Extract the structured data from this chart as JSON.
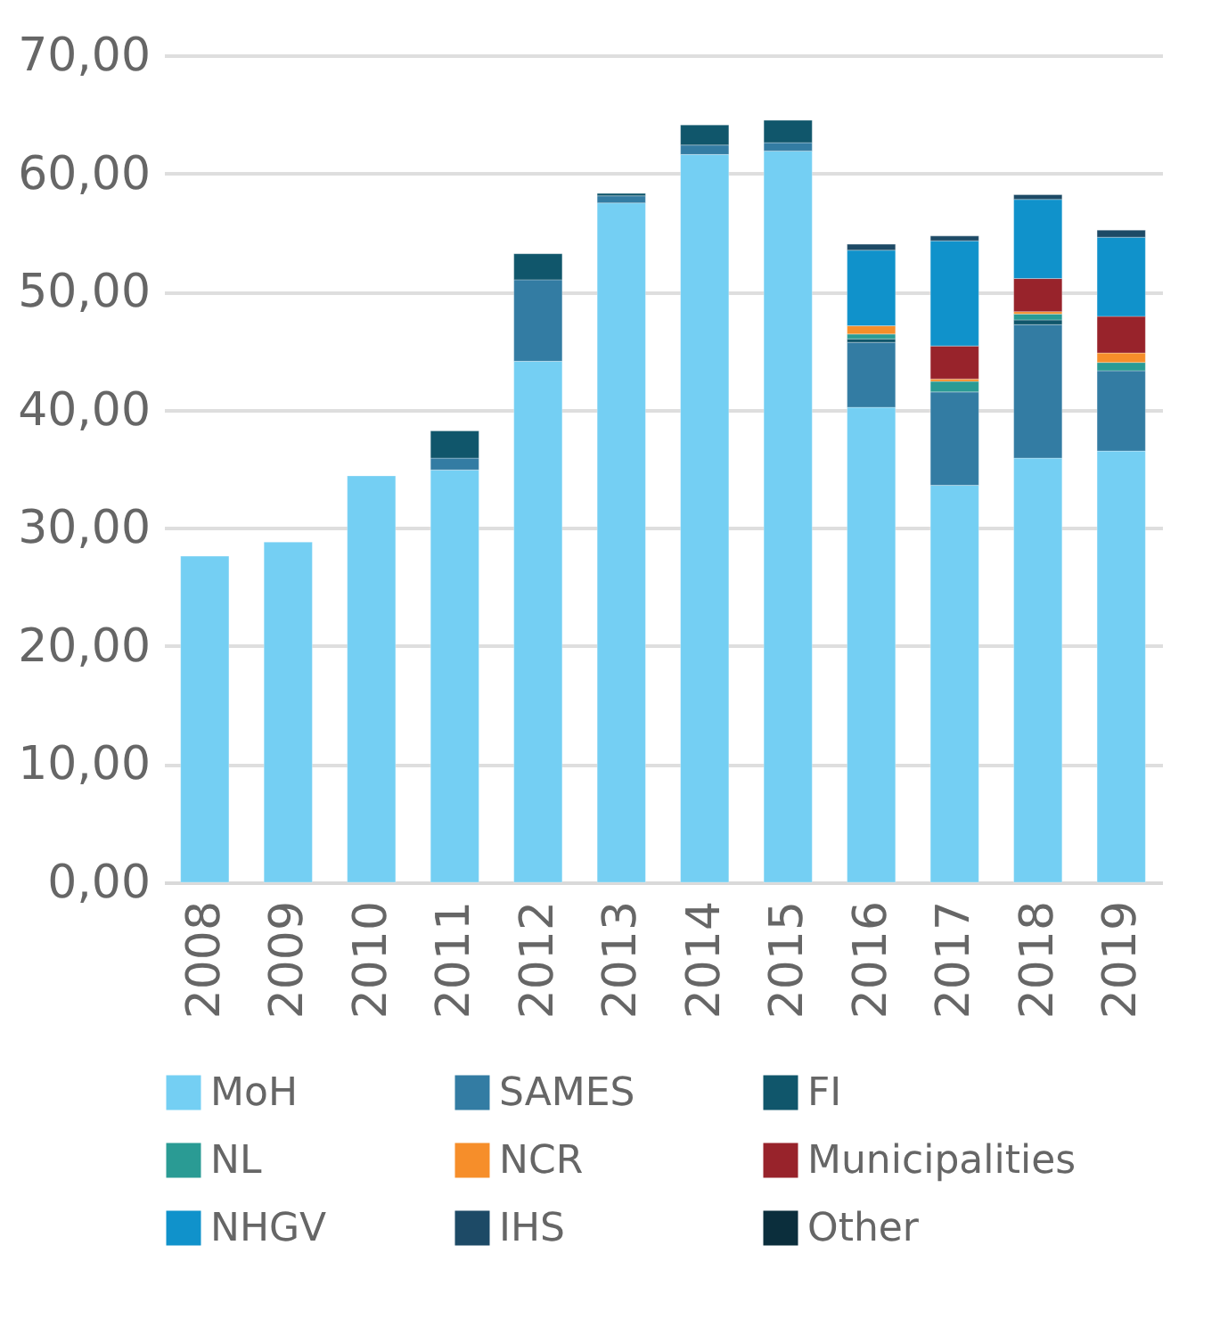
{
  "chart_data": {
    "type": "bar",
    "stacked": true,
    "categories": [
      "2008",
      "2009",
      "2010",
      "2011",
      "2012",
      "2013",
      "2014",
      "2015",
      "2016",
      "2017",
      "2018",
      "2019"
    ],
    "series": [
      {
        "name": "MoH",
        "color": "#74cff3",
        "values": [
          27.6,
          28.8,
          34.4,
          34.9,
          44.1,
          57.5,
          61.6,
          61.9,
          40.2,
          33.6,
          35.9,
          36.5
        ]
      },
      {
        "name": "SAMES",
        "color": "#337ca3",
        "values": [
          null,
          null,
          null,
          1.0,
          6.9,
          0.6,
          0.8,
          0.7,
          5.5,
          7.9,
          11.3,
          6.8
        ]
      },
      {
        "name": "FI",
        "color": "#10566b",
        "values": [
          null,
          null,
          null,
          2.3,
          2.2,
          0.2,
          1.7,
          1.9,
          0.3,
          null,
          0.4,
          null
        ]
      },
      {
        "name": "NL",
        "color": "#2a9b94",
        "values": [
          null,
          null,
          null,
          null,
          null,
          null,
          null,
          null,
          0.4,
          0.9,
          0.5,
          0.7
        ]
      },
      {
        "name": "NCR",
        "color": "#f68e2a",
        "values": [
          null,
          null,
          null,
          null,
          null,
          null,
          null,
          null,
          0.7,
          0.2,
          0.2,
          0.8
        ]
      },
      {
        "name": "Municipalities",
        "color": "#98232b",
        "values": [
          null,
          null,
          null,
          null,
          null,
          null,
          null,
          null,
          null,
          2.8,
          2.8,
          3.1
        ]
      },
      {
        "name": "NHGV",
        "color": "#1092cb",
        "values": [
          null,
          null,
          null,
          null,
          null,
          null,
          null,
          null,
          6.4,
          8.9,
          6.7,
          6.7
        ]
      },
      {
        "name": "IHS",
        "color": "#1d4a66",
        "values": [
          null,
          null,
          null,
          null,
          null,
          null,
          null,
          null,
          0.5,
          0.4,
          0.4,
          0.6
        ]
      },
      {
        "name": "Other",
        "color": "#0b2e3c",
        "values": [
          null,
          null,
          null,
          null,
          null,
          null,
          null,
          null,
          null,
          null,
          null,
          null
        ]
      }
    ],
    "ylim": [
      0,
      70
    ],
    "yticks": [
      {
        "value": 0,
        "label": "0,00"
      },
      {
        "value": 10,
        "label": "10,00"
      },
      {
        "value": 20,
        "label": "20,00"
      },
      {
        "value": 30,
        "label": "30,00"
      },
      {
        "value": 40,
        "label": "40,00"
      },
      {
        "value": 50,
        "label": "50,00"
      },
      {
        "value": 60,
        "label": "60,00"
      },
      {
        "value": 70,
        "label": "70,00"
      }
    ],
    "grid": "y",
    "legend": "bottom"
  }
}
